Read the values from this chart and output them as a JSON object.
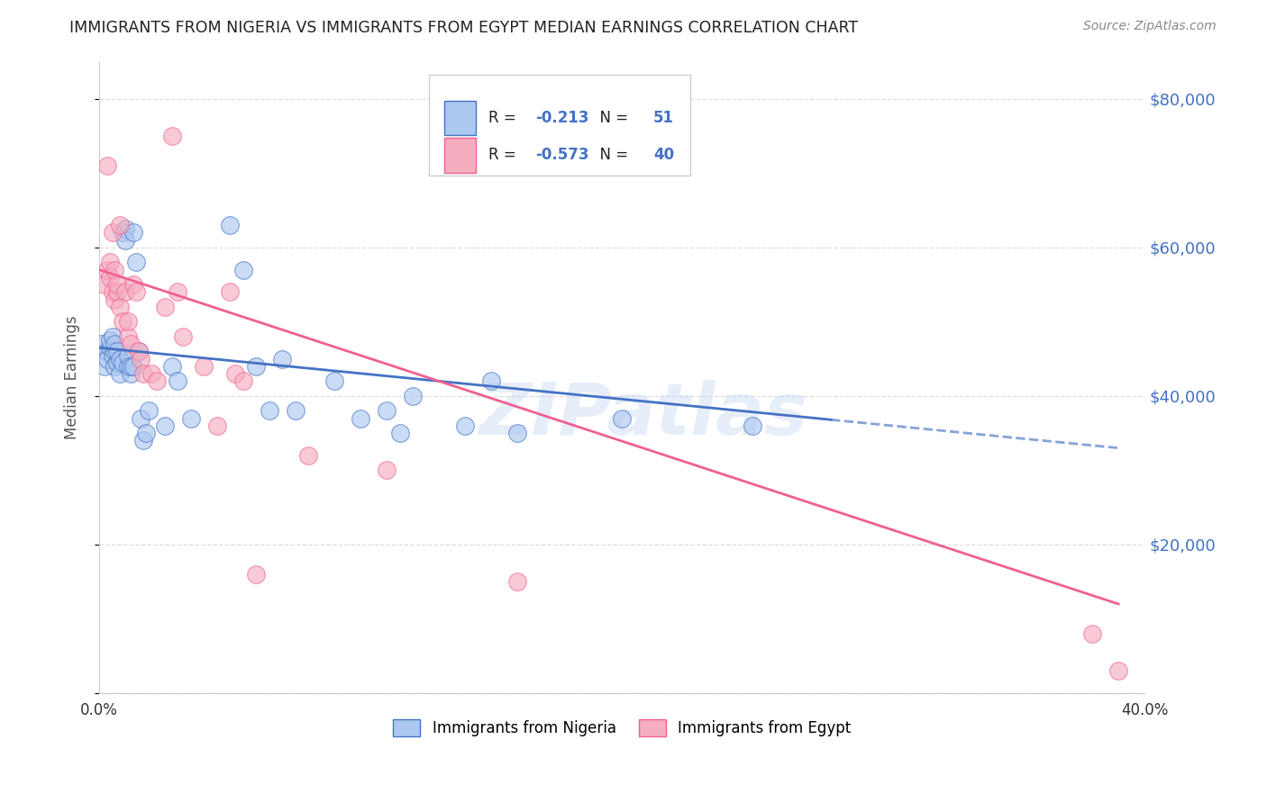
{
  "title": "IMMIGRANTS FROM NIGERIA VS IMMIGRANTS FROM EGYPT MEDIAN EARNINGS CORRELATION CHART",
  "source": "Source: ZipAtlas.com",
  "ylabel": "Median Earnings",
  "r_nigeria": -0.213,
  "n_nigeria": 51,
  "r_egypt": -0.573,
  "n_egypt": 40,
  "nigeria_fill": "#adc8f0",
  "egypt_fill": "#f5aec0",
  "nigeria_edge": "#4472c4",
  "egypt_edge": "#f06090",
  "nigeria_line_color": "#4472c4",
  "egypt_line_color": "#f06090",
  "nigeria_points": [
    [
      0.001,
      47000
    ],
    [
      0.002,
      44000
    ],
    [
      0.003,
      46000
    ],
    [
      0.003,
      45000
    ],
    [
      0.004,
      46500
    ],
    [
      0.004,
      47500
    ],
    [
      0.005,
      45500
    ],
    [
      0.005,
      48000
    ],
    [
      0.006,
      44000
    ],
    [
      0.006,
      46000
    ],
    [
      0.006,
      47000
    ],
    [
      0.007,
      44500
    ],
    [
      0.007,
      46000
    ],
    [
      0.008,
      45000
    ],
    [
      0.008,
      43000
    ],
    [
      0.009,
      44500
    ],
    [
      0.009,
      62000
    ],
    [
      0.01,
      62500
    ],
    [
      0.01,
      61000
    ],
    [
      0.011,
      44000
    ],
    [
      0.011,
      45500
    ],
    [
      0.012,
      43000
    ],
    [
      0.012,
      44000
    ],
    [
      0.013,
      44000
    ],
    [
      0.013,
      62000
    ],
    [
      0.014,
      58000
    ],
    [
      0.015,
      46000
    ],
    [
      0.016,
      37000
    ],
    [
      0.017,
      34000
    ],
    [
      0.018,
      35000
    ],
    [
      0.019,
      38000
    ],
    [
      0.025,
      36000
    ],
    [
      0.028,
      44000
    ],
    [
      0.03,
      42000
    ],
    [
      0.035,
      37000
    ],
    [
      0.05,
      63000
    ],
    [
      0.055,
      57000
    ],
    [
      0.06,
      44000
    ],
    [
      0.065,
      38000
    ],
    [
      0.07,
      45000
    ],
    [
      0.075,
      38000
    ],
    [
      0.09,
      42000
    ],
    [
      0.1,
      37000
    ],
    [
      0.11,
      38000
    ],
    [
      0.115,
      35000
    ],
    [
      0.12,
      40000
    ],
    [
      0.14,
      36000
    ],
    [
      0.15,
      42000
    ],
    [
      0.16,
      35000
    ],
    [
      0.2,
      37000
    ],
    [
      0.25,
      36000
    ]
  ],
  "egypt_points": [
    [
      0.002,
      55000
    ],
    [
      0.003,
      71000
    ],
    [
      0.003,
      57000
    ],
    [
      0.004,
      58000
    ],
    [
      0.004,
      56000
    ],
    [
      0.005,
      54000
    ],
    [
      0.005,
      62000
    ],
    [
      0.006,
      53000
    ],
    [
      0.006,
      57000
    ],
    [
      0.007,
      54000
    ],
    [
      0.007,
      55000
    ],
    [
      0.008,
      63000
    ],
    [
      0.008,
      52000
    ],
    [
      0.009,
      50000
    ],
    [
      0.01,
      54000
    ],
    [
      0.011,
      48000
    ],
    [
      0.011,
      50000
    ],
    [
      0.012,
      47000
    ],
    [
      0.013,
      55000
    ],
    [
      0.014,
      54000
    ],
    [
      0.015,
      46000
    ],
    [
      0.016,
      45000
    ],
    [
      0.017,
      43000
    ],
    [
      0.02,
      43000
    ],
    [
      0.022,
      42000
    ],
    [
      0.025,
      52000
    ],
    [
      0.028,
      75000
    ],
    [
      0.03,
      54000
    ],
    [
      0.032,
      48000
    ],
    [
      0.04,
      44000
    ],
    [
      0.045,
      36000
    ],
    [
      0.05,
      54000
    ],
    [
      0.052,
      43000
    ],
    [
      0.055,
      42000
    ],
    [
      0.06,
      16000
    ],
    [
      0.08,
      32000
    ],
    [
      0.11,
      30000
    ],
    [
      0.16,
      15000
    ],
    [
      0.38,
      8000
    ],
    [
      0.39,
      3000
    ]
  ],
  "yticks": [
    0,
    20000,
    40000,
    60000,
    80000
  ],
  "ytick_labels": [
    "",
    "$20,000",
    "$40,000",
    "$60,000",
    "$80,000"
  ],
  "watermark": "ZIPatlas",
  "background_color": "#ffffff",
  "grid_color": "#dddddd",
  "legend_label_nigeria": "Immigrants from Nigeria",
  "legend_label_egypt": "Immigrants from Egypt"
}
